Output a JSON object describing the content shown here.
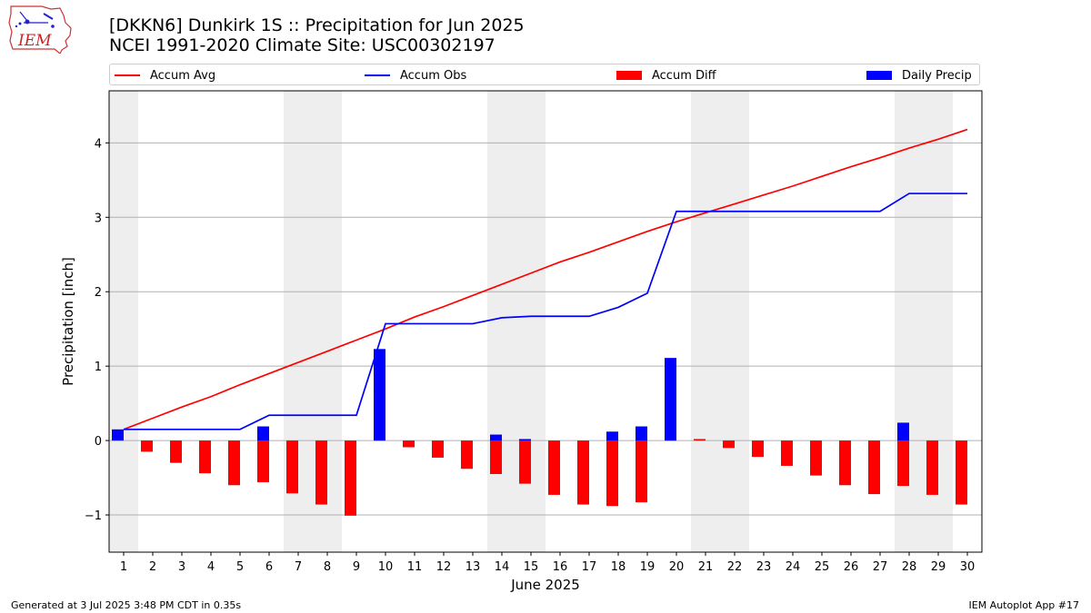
{
  "header": {
    "title_line1": "[DKKN6] Dunkirk 1S :: Precipitation for Jun 2025",
    "title_line2": "NCEI 1991-2020 Climate Site: USC00302197",
    "logo_text": "IEM"
  },
  "footer": {
    "left": "Generated at 3 Jul 2025 3:48 PM CDT in 0.35s",
    "right": "IEM Autoplot App #17"
  },
  "colors": {
    "accum_avg": "#ff0000",
    "accum_obs": "#0000ff",
    "accum_diff": "#ff0000",
    "daily_precip": "#0000ff",
    "weekend_shade": "#eeeeee",
    "grid": "#b0b0b0"
  },
  "chart_data": {
    "type": "bar",
    "title": "[DKKN6] Dunkirk 1S :: Precipitation for Jun 2025",
    "subtitle": "NCEI 1991-2020 Climate Site: USC00302197",
    "xlabel": "June 2025",
    "ylabel": "Precipitation [inch]",
    "xlim": [
      0.5,
      30.5
    ],
    "ylim": [
      -1.5,
      4.7
    ],
    "yticks": [
      -1,
      0,
      1,
      2,
      3,
      4
    ],
    "yticklabels": [
      "−1",
      "0",
      "1",
      "2",
      "3",
      "4"
    ],
    "grid": "y-major",
    "legend_placement": "top, above plot, single row",
    "days": [
      1,
      2,
      3,
      4,
      5,
      6,
      7,
      8,
      9,
      10,
      11,
      12,
      13,
      14,
      15,
      16,
      17,
      18,
      19,
      20,
      21,
      22,
      23,
      24,
      25,
      26,
      27,
      28,
      29,
      30
    ],
    "shaded_day_ranges": [
      [
        0.5,
        1.5
      ],
      [
        6.5,
        8.5
      ],
      [
        13.5,
        15.5
      ],
      [
        20.5,
        22.5
      ],
      [
        27.5,
        29.5
      ]
    ],
    "series": [
      {
        "name": "Accum Avg",
        "kind": "line",
        "color": "#ff0000",
        "values": [
          0.15,
          0.3,
          0.45,
          0.59,
          0.75,
          0.9,
          1.05,
          1.2,
          1.35,
          1.5,
          1.66,
          1.8,
          1.95,
          2.1,
          2.25,
          2.4,
          2.53,
          2.67,
          2.81,
          2.94,
          3.06,
          3.18,
          3.3,
          3.42,
          3.55,
          3.68,
          3.8,
          3.93,
          4.05,
          4.18
        ]
      },
      {
        "name": "Accum Obs",
        "kind": "line",
        "color": "#0000ff",
        "values": [
          0.15,
          0.15,
          0.15,
          0.15,
          0.15,
          0.34,
          0.34,
          0.34,
          0.34,
          1.57,
          1.57,
          1.57,
          1.57,
          1.65,
          1.67,
          1.67,
          1.67,
          1.79,
          1.98,
          3.08,
          3.08,
          3.08,
          3.08,
          3.08,
          3.08,
          3.08,
          3.08,
          3.32,
          3.32,
          3.32
        ]
      },
      {
        "name": "Accum Diff",
        "kind": "bar",
        "color": "#ff0000",
        "values": [
          0.0,
          -0.15,
          -0.3,
          -0.44,
          -0.6,
          -0.56,
          -0.71,
          -0.86,
          -1.01,
          0.07,
          -0.09,
          -0.23,
          -0.38,
          -0.45,
          -0.58,
          -0.73,
          -0.86,
          -0.88,
          -0.83,
          0.14,
          0.02,
          -0.1,
          -0.22,
          -0.34,
          -0.47,
          -0.6,
          -0.72,
          -0.61,
          -0.73,
          -0.86
        ]
      },
      {
        "name": "Daily Precip",
        "kind": "bar",
        "color": "#0000ff",
        "values": [
          0.15,
          0.0,
          0.0,
          0.0,
          0.0,
          0.19,
          0.0,
          0.0,
          0.0,
          1.23,
          0.0,
          0.0,
          0.0,
          0.08,
          0.02,
          0.0,
          0.0,
          0.12,
          0.19,
          1.11,
          0.0,
          0.0,
          0.0,
          0.0,
          0.0,
          0.0,
          0.0,
          0.24,
          0.0,
          0.0
        ]
      }
    ]
  }
}
